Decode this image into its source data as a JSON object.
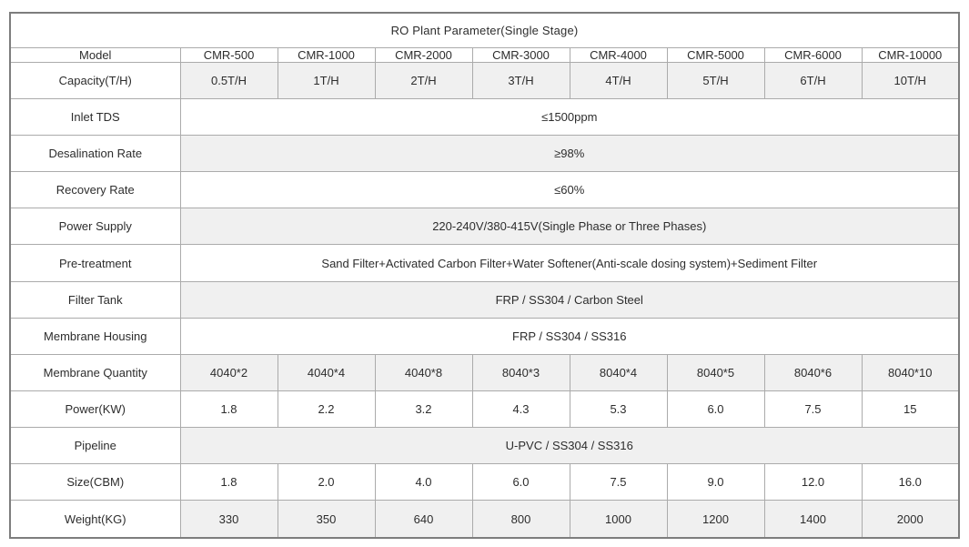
{
  "title": "RO Plant Parameter(Single Stage)",
  "colors": {
    "title_bar": "#049FE4",
    "label_column": "#A3CE84",
    "row_alt": "#F0F0F0",
    "row_plain": "#FFFFFF"
  },
  "table": {
    "model_row": {
      "label": "Model",
      "models": [
        "CMR-500",
        "CMR-1000",
        "CMR-2000",
        "CMR-3000",
        "CMR-4000",
        "CMR-5000",
        "CMR-6000",
        "CMR-10000"
      ]
    },
    "rows": [
      {
        "label": "Capacity(T/H)",
        "values": [
          "0.5T/H",
          "1T/H",
          "2T/H",
          "3T/H",
          "4T/H",
          "5T/H",
          "6T/H",
          "10T/H"
        ]
      },
      {
        "label": "Inlet TDS",
        "value": "≤1500ppm"
      },
      {
        "label": "Desalination Rate",
        "value": "≥98%"
      },
      {
        "label": "Recovery Rate",
        "value": "≤60%"
      },
      {
        "label": "Power Supply",
        "value": "220-240V/380-415V(Single Phase or Three Phases)"
      },
      {
        "label": "Pre-treatment",
        "value": "Sand Filter+Activated Carbon Filter+Water Softener(Anti-scale dosing system)+Sediment Filter"
      },
      {
        "label": "Filter Tank",
        "value": "FRP / SS304 / Carbon Steel"
      },
      {
        "label": "Membrane Housing",
        "value": "FRP / SS304 / SS316"
      },
      {
        "label": "Membrane Quantity",
        "values": [
          "4040*2",
          "4040*4",
          "4040*8",
          "8040*3",
          "8040*4",
          "8040*5",
          "8040*6",
          "8040*10"
        ]
      },
      {
        "label": "Power(KW)",
        "values": [
          "1.8",
          "2.2",
          "3.2",
          "4.3",
          "5.3",
          "6.0",
          "7.5",
          "15"
        ]
      },
      {
        "label": "Pipeline",
        "value": "U-PVC / SS304 / SS316"
      },
      {
        "label": "Size(CBM)",
        "values": [
          "1.8",
          "2.0",
          "4.0",
          "6.0",
          "7.5",
          "9.0",
          "12.0",
          "16.0"
        ]
      },
      {
        "label": "Weight(KG)",
        "values": [
          "330",
          "350",
          "640",
          "800",
          "1000",
          "1200",
          "1400",
          "2000"
        ]
      }
    ]
  }
}
